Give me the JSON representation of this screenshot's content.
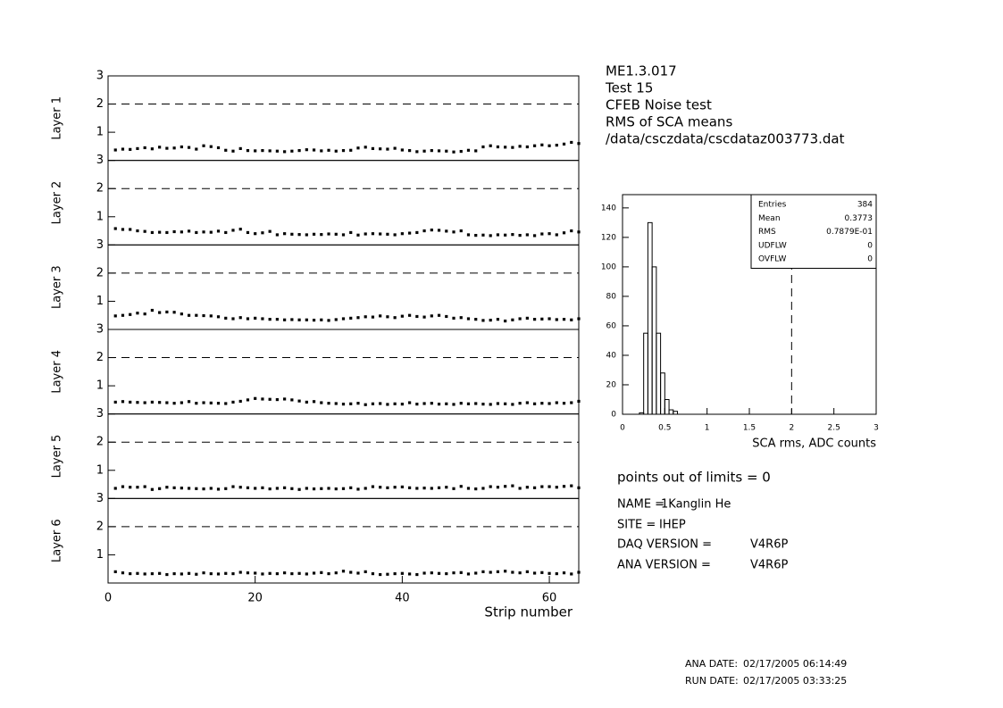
{
  "chart_data": [
    {
      "type": "scatter",
      "ylabel": "Layer 1",
      "x": [
        1,
        2,
        3,
        4,
        5,
        6,
        7,
        8,
        9,
        10,
        11,
        12,
        13,
        14,
        15,
        16,
        17,
        18,
        19,
        20,
        21,
        22,
        23,
        24,
        25,
        26,
        27,
        28,
        29,
        30,
        31,
        32,
        33,
        34,
        35,
        36,
        37,
        38,
        39,
        40,
        41,
        42,
        43,
        44,
        45,
        46,
        47,
        48,
        49,
        50,
        51,
        52,
        53,
        54,
        55,
        56,
        57,
        58,
        59,
        60,
        61,
        62,
        63,
        64
      ],
      "values": [
        0.37,
        0.4,
        0.39,
        0.42,
        0.45,
        0.41,
        0.47,
        0.43,
        0.44,
        0.48,
        0.46,
        0.4,
        0.52,
        0.49,
        0.45,
        0.36,
        0.33,
        0.42,
        0.35,
        0.34,
        0.35,
        0.34,
        0.33,
        0.31,
        0.33,
        0.35,
        0.38,
        0.37,
        0.34,
        0.36,
        0.33,
        0.35,
        0.36,
        0.44,
        0.47,
        0.42,
        0.41,
        0.4,
        0.43,
        0.37,
        0.35,
        0.31,
        0.33,
        0.35,
        0.34,
        0.33,
        0.3,
        0.32,
        0.36,
        0.34,
        0.48,
        0.52,
        0.48,
        0.47,
        0.46,
        0.5,
        0.48,
        0.52,
        0.55,
        0.52,
        0.54,
        0.58,
        0.64,
        0.6
      ],
      "xlim": [
        0,
        64
      ],
      "ylim": [
        0,
        3
      ],
      "yticks": [
        1,
        2,
        3
      ],
      "ref_line": 2,
      "color": "#000000"
    },
    {
      "type": "scatter",
      "ylabel": "Layer 2",
      "x": [
        1,
        2,
        3,
        4,
        5,
        6,
        7,
        8,
        9,
        10,
        11,
        12,
        13,
        14,
        15,
        16,
        17,
        18,
        19,
        20,
        21,
        22,
        23,
        24,
        25,
        26,
        27,
        28,
        29,
        30,
        31,
        32,
        33,
        34,
        35,
        36,
        37,
        38,
        39,
        40,
        41,
        42,
        43,
        44,
        45,
        46,
        47,
        48,
        49,
        50,
        51,
        52,
        53,
        54,
        55,
        56,
        57,
        58,
        59,
        60,
        61,
        62,
        63,
        64
      ],
      "values": [
        0.58,
        0.55,
        0.55,
        0.5,
        0.48,
        0.44,
        0.45,
        0.44,
        0.47,
        0.46,
        0.49,
        0.44,
        0.46,
        0.45,
        0.49,
        0.44,
        0.52,
        0.56,
        0.44,
        0.4,
        0.43,
        0.48,
        0.36,
        0.4,
        0.38,
        0.37,
        0.36,
        0.38,
        0.37,
        0.39,
        0.38,
        0.36,
        0.44,
        0.35,
        0.39,
        0.4,
        0.39,
        0.38,
        0.36,
        0.4,
        0.42,
        0.44,
        0.5,
        0.53,
        0.52,
        0.49,
        0.46,
        0.5,
        0.36,
        0.34,
        0.35,
        0.33,
        0.36,
        0.35,
        0.37,
        0.34,
        0.36,
        0.33,
        0.39,
        0.4,
        0.36,
        0.43,
        0.5,
        0.46
      ],
      "xlim": [
        0,
        64
      ],
      "ylim": [
        0,
        3
      ],
      "yticks": [
        1,
        2,
        3
      ],
      "ref_line": 2,
      "color": "#000000"
    },
    {
      "type": "scatter",
      "ylabel": "Layer 3",
      "x": [
        1,
        2,
        3,
        4,
        5,
        6,
        7,
        8,
        9,
        10,
        11,
        12,
        13,
        14,
        15,
        16,
        17,
        18,
        19,
        20,
        21,
        22,
        23,
        24,
        25,
        26,
        27,
        28,
        29,
        30,
        31,
        32,
        33,
        34,
        35,
        36,
        37,
        38,
        39,
        40,
        41,
        42,
        43,
        44,
        45,
        46,
        47,
        48,
        49,
        50,
        51,
        52,
        53,
        54,
        55,
        56,
        57,
        58,
        59,
        60,
        61,
        62,
        63,
        64
      ],
      "values": [
        0.48,
        0.5,
        0.53,
        0.58,
        0.55,
        0.68,
        0.6,
        0.62,
        0.61,
        0.55,
        0.5,
        0.5,
        0.49,
        0.48,
        0.45,
        0.4,
        0.38,
        0.42,
        0.38,
        0.4,
        0.38,
        0.36,
        0.36,
        0.34,
        0.35,
        0.34,
        0.34,
        0.33,
        0.34,
        0.32,
        0.35,
        0.38,
        0.4,
        0.42,
        0.45,
        0.44,
        0.48,
        0.45,
        0.42,
        0.47,
        0.5,
        0.46,
        0.44,
        0.48,
        0.5,
        0.46,
        0.4,
        0.42,
        0.38,
        0.36,
        0.32,
        0.33,
        0.36,
        0.3,
        0.34,
        0.38,
        0.4,
        0.36,
        0.37,
        0.38,
        0.35,
        0.36,
        0.34,
        0.38
      ],
      "xlim": [
        0,
        64
      ],
      "ylim": [
        0,
        3
      ],
      "yticks": [
        1,
        2,
        3
      ],
      "ref_line": 2,
      "color": "#000000"
    },
    {
      "type": "scatter",
      "ylabel": "Layer 4",
      "x": [
        1,
        2,
        3,
        4,
        5,
        6,
        7,
        8,
        9,
        10,
        11,
        12,
        13,
        14,
        15,
        16,
        17,
        18,
        19,
        20,
        21,
        22,
        23,
        24,
        25,
        26,
        27,
        28,
        29,
        30,
        31,
        32,
        33,
        34,
        35,
        36,
        37,
        38,
        39,
        40,
        41,
        42,
        43,
        44,
        45,
        46,
        47,
        48,
        49,
        50,
        51,
        52,
        53,
        54,
        55,
        56,
        57,
        58,
        59,
        60,
        61,
        62,
        63,
        64
      ],
      "values": [
        0.42,
        0.44,
        0.42,
        0.41,
        0.4,
        0.42,
        0.41,
        0.4,
        0.38,
        0.4,
        0.44,
        0.38,
        0.4,
        0.39,
        0.38,
        0.37,
        0.42,
        0.45,
        0.5,
        0.55,
        0.53,
        0.52,
        0.51,
        0.53,
        0.5,
        0.46,
        0.42,
        0.44,
        0.4,
        0.38,
        0.37,
        0.35,
        0.36,
        0.38,
        0.33,
        0.36,
        0.37,
        0.34,
        0.36,
        0.35,
        0.4,
        0.35,
        0.37,
        0.38,
        0.35,
        0.36,
        0.34,
        0.38,
        0.36,
        0.37,
        0.35,
        0.34,
        0.37,
        0.36,
        0.34,
        0.38,
        0.4,
        0.36,
        0.38,
        0.37,
        0.4,
        0.38,
        0.4,
        0.45
      ],
      "xlim": [
        0,
        64
      ],
      "ylim": [
        0,
        3
      ],
      "yticks": [
        1,
        2,
        3
      ],
      "ref_line": 2,
      "color": "#000000"
    },
    {
      "type": "scatter",
      "ylabel": "Layer 5",
      "x": [
        1,
        2,
        3,
        4,
        5,
        6,
        7,
        8,
        9,
        10,
        11,
        12,
        13,
        14,
        15,
        16,
        17,
        18,
        19,
        20,
        21,
        22,
        23,
        24,
        25,
        26,
        27,
        28,
        29,
        30,
        31,
        32,
        33,
        34,
        35,
        36,
        37,
        38,
        39,
        40,
        41,
        42,
        43,
        44,
        45,
        46,
        47,
        48,
        49,
        50,
        51,
        52,
        53,
        54,
        55,
        56,
        57,
        58,
        59,
        60,
        61,
        62,
        63,
        64
      ],
      "values": [
        0.36,
        0.42,
        0.4,
        0.4,
        0.42,
        0.32,
        0.35,
        0.4,
        0.38,
        0.37,
        0.36,
        0.35,
        0.34,
        0.36,
        0.33,
        0.35,
        0.42,
        0.4,
        0.38,
        0.36,
        0.38,
        0.34,
        0.36,
        0.38,
        0.35,
        0.32,
        0.36,
        0.34,
        0.35,
        0.36,
        0.34,
        0.35,
        0.38,
        0.33,
        0.36,
        0.42,
        0.4,
        0.38,
        0.4,
        0.41,
        0.38,
        0.36,
        0.37,
        0.36,
        0.38,
        0.4,
        0.35,
        0.43,
        0.36,
        0.34,
        0.36,
        0.42,
        0.4,
        0.43,
        0.45,
        0.36,
        0.4,
        0.38,
        0.42,
        0.42,
        0.4,
        0.43,
        0.45,
        0.38
      ],
      "xlim": [
        0,
        64
      ],
      "ylim": [
        0,
        3
      ],
      "yticks": [
        1,
        2,
        3
      ],
      "ref_line": 2,
      "color": "#000000"
    },
    {
      "type": "scatter",
      "ylabel": "Layer 6",
      "xlabel": "Strip number",
      "x": [
        1,
        2,
        3,
        4,
        5,
        6,
        7,
        8,
        9,
        10,
        11,
        12,
        13,
        14,
        15,
        16,
        17,
        18,
        19,
        20,
        21,
        22,
        23,
        24,
        25,
        26,
        27,
        28,
        29,
        30,
        31,
        32,
        33,
        34,
        35,
        36,
        37,
        38,
        39,
        40,
        41,
        42,
        43,
        44,
        45,
        46,
        47,
        48,
        49,
        50,
        51,
        52,
        53,
        54,
        55,
        56,
        57,
        58,
        59,
        60,
        61,
        62,
        63,
        64
      ],
      "values": [
        0.4,
        0.36,
        0.33,
        0.34,
        0.32,
        0.33,
        0.34,
        0.3,
        0.33,
        0.32,
        0.34,
        0.31,
        0.36,
        0.33,
        0.32,
        0.34,
        0.33,
        0.38,
        0.36,
        0.35,
        0.32,
        0.34,
        0.33,
        0.36,
        0.33,
        0.34,
        0.32,
        0.35,
        0.37,
        0.33,
        0.36,
        0.42,
        0.38,
        0.35,
        0.4,
        0.33,
        0.3,
        0.31,
        0.33,
        0.34,
        0.32,
        0.3,
        0.35,
        0.36,
        0.34,
        0.33,
        0.36,
        0.37,
        0.32,
        0.35,
        0.4,
        0.38,
        0.4,
        0.42,
        0.38,
        0.36,
        0.4,
        0.35,
        0.37,
        0.34,
        0.33,
        0.36,
        0.32,
        0.38
      ],
      "xlim": [
        0,
        64
      ],
      "xticks": [
        0,
        20,
        40,
        60
      ],
      "ylim": [
        0,
        3
      ],
      "yticks": [
        1,
        2,
        3
      ],
      "ref_line": 2,
      "color": "#000000"
    },
    {
      "type": "histogram",
      "xlabel": "SCA rms, ADC counts",
      "bins": [
        0,
        0.05,
        0.1,
        0.15,
        0.2,
        0.25,
        0.3,
        0.35,
        0.4,
        0.45,
        0.5,
        0.55,
        0.6,
        0.65,
        0.7,
        0.75,
        0.8,
        0.85,
        0.9,
        0.95,
        1,
        1.05,
        1.1,
        1.15,
        1.2,
        1.25,
        1.3,
        1.35,
        1.4,
        1.45,
        1.5,
        1.55,
        1.6,
        1.65,
        1.7,
        1.75,
        1.8,
        1.85,
        1.9,
        1.95,
        2,
        2.05,
        2.1,
        2.15,
        2.2,
        2.25,
        2.3,
        2.35,
        2.4,
        2.45,
        2.5,
        2.55,
        2.6,
        2.65,
        2.7,
        2.75,
        2.8,
        2.85,
        2.9,
        2.95,
        3
      ],
      "values": [
        0,
        0,
        0,
        0,
        1,
        55,
        130,
        100,
        55,
        28,
        10,
        3,
        2,
        0,
        0,
        0,
        0,
        0,
        0,
        0,
        0,
        0,
        0,
        0,
        0,
        0,
        0,
        0,
        0,
        0,
        0,
        0,
        0,
        0,
        0,
        0,
        0,
        0,
        0,
        0,
        0,
        0,
        0,
        0,
        0,
        0,
        0,
        0,
        0,
        0,
        0,
        0,
        0,
        0,
        0,
        0,
        0,
        0,
        0,
        0
      ],
      "xlim": [
        0,
        3
      ],
      "xticks": [
        0,
        0.5,
        1,
        1.5,
        2,
        2.5,
        3
      ],
      "ylim": [
        0,
        149
      ],
      "yticks": [
        0,
        20,
        40,
        60,
        80,
        100,
        120,
        140
      ],
      "ref_line": 2,
      "color": "#000000",
      "stats": [
        {
          "name": "Entries",
          "value": "384"
        },
        {
          "name": "Mean",
          "value": "0.3773"
        },
        {
          "name": "RMS",
          "value": "0.7879E-01"
        },
        {
          "name": "UDFLW",
          "value": "0"
        },
        {
          "name": "OVFLW",
          "value": "0"
        }
      ]
    }
  ],
  "info": {
    "header": [
      "ME1.3.017",
      "Test 15",
      "CFEB Noise test",
      "RMS of SCA means",
      "/data/csczdata/cscdataz003773.dat"
    ],
    "summary": "points out of limits = 0",
    "fields": [
      {
        "label": "NAME =",
        "value": "1Kanglin He"
      },
      {
        "label": "SITE =",
        "value": "IHEP"
      },
      {
        "label": "DAQ VERSION =",
        "value": "V4R6P"
      },
      {
        "label": "ANA VERSION =",
        "value": "V4R6P"
      }
    ],
    "dates": [
      {
        "label": "ANA DATE:",
        "value": "02/17/2005 06:14:49"
      },
      {
        "label": "RUN DATE:",
        "value": "02/17/2005 03:33:25"
      }
    ]
  }
}
